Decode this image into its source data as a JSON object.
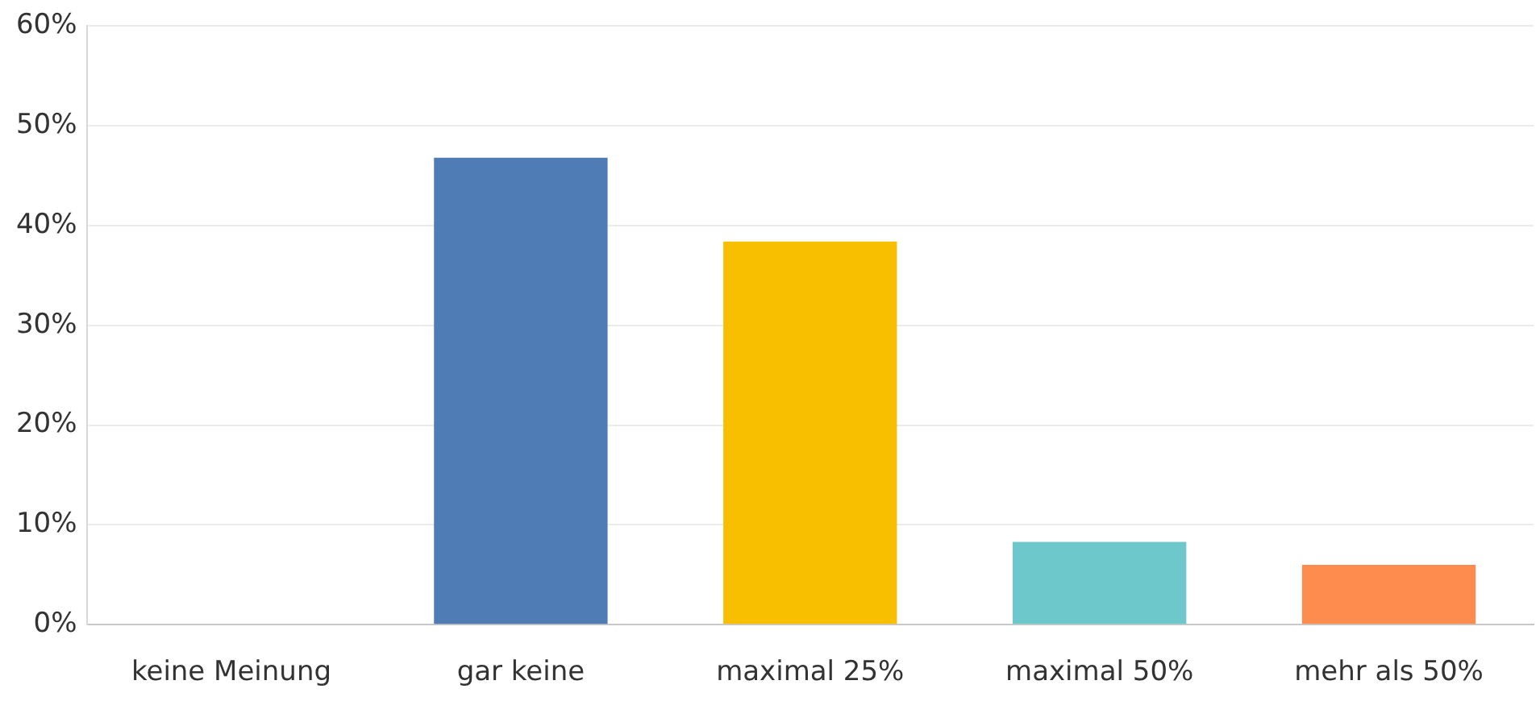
{
  "chart_data": {
    "type": "bar",
    "categories": [
      "keine Meinung",
      "gar keine",
      "maximal 25%",
      "maximal 50%",
      "mehr als 50%"
    ],
    "values": [
      0,
      46.8,
      38.4,
      8.3,
      6
    ],
    "colors": [
      "#a0a0a0",
      "#507cb6",
      "#f7bf00",
      "#6dc8cc",
      "#ff8c4f"
    ],
    "ylim": [
      0,
      60
    ],
    "yticks": [
      {
        "value": 0,
        "label": "0%"
      },
      {
        "value": 10,
        "label": "10%"
      },
      {
        "value": 20,
        "label": "20%"
      },
      {
        "value": 30,
        "label": "30%"
      },
      {
        "value": 40,
        "label": "40%"
      },
      {
        "value": 50,
        "label": "50%"
      },
      {
        "value": 60,
        "label": "60%"
      }
    ],
    "grid": "y",
    "legend": false
  }
}
